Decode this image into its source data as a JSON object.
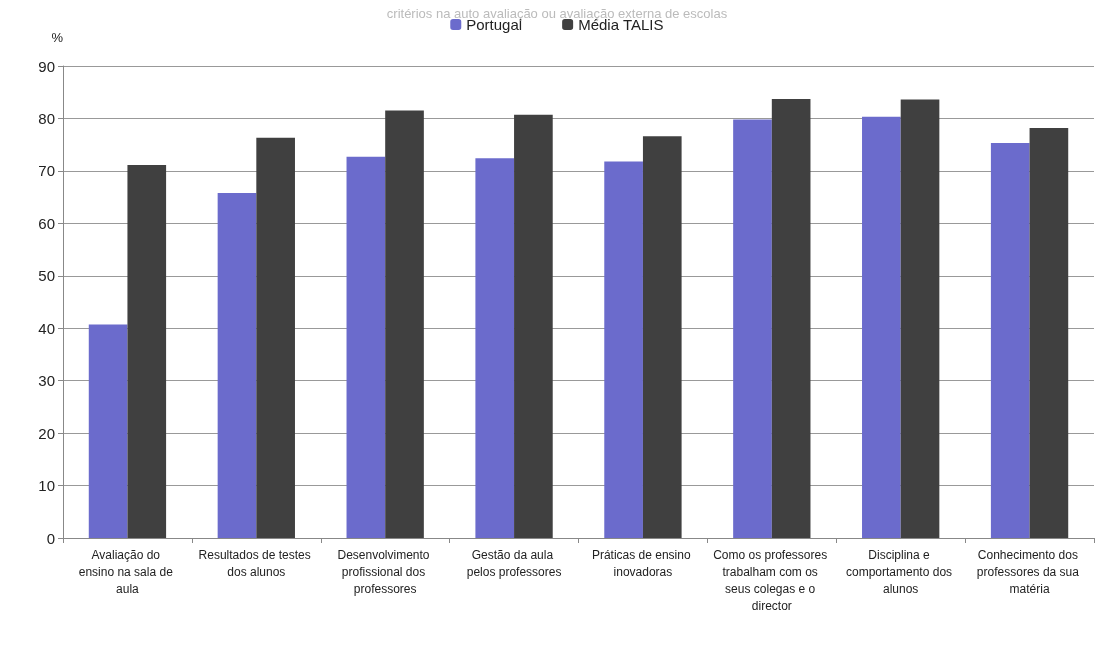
{
  "chart_data": {
    "type": "bar",
    "title": "critérios na auto avaliação ou avaliação externa de escolas",
    "ylabel": "%",
    "categories": [
      "Avaliação do ensino na sala de aula",
      "Resultados de testes dos alunos",
      "Desenvolvimento profissional dos professores",
      "Gestão da aula pelos professores",
      "Práticas de ensino inovadoras",
      "Como os professores trabalham com os seus colegas e o director",
      "Disciplina e comportamento dos alunos",
      "Conhecimento dos professores da sua matéria"
    ],
    "series": [
      {
        "name": "Portugal",
        "color": "#6b6bcc",
        "values": [
          40.7,
          65.8,
          72.7,
          72.4,
          71.8,
          79.8,
          80.3,
          75.3
        ]
      },
      {
        "name": "Média TALIS",
        "color": "#404040",
        "values": [
          71.1,
          76.3,
          81.5,
          80.7,
          76.6,
          83.7,
          83.6,
          78.2
        ]
      }
    ],
    "ylim": [
      0,
      90
    ],
    "yticks": [
      0,
      10,
      20,
      30,
      40,
      50,
      60,
      70,
      80,
      90
    ],
    "grid": "y",
    "legend": "top"
  }
}
